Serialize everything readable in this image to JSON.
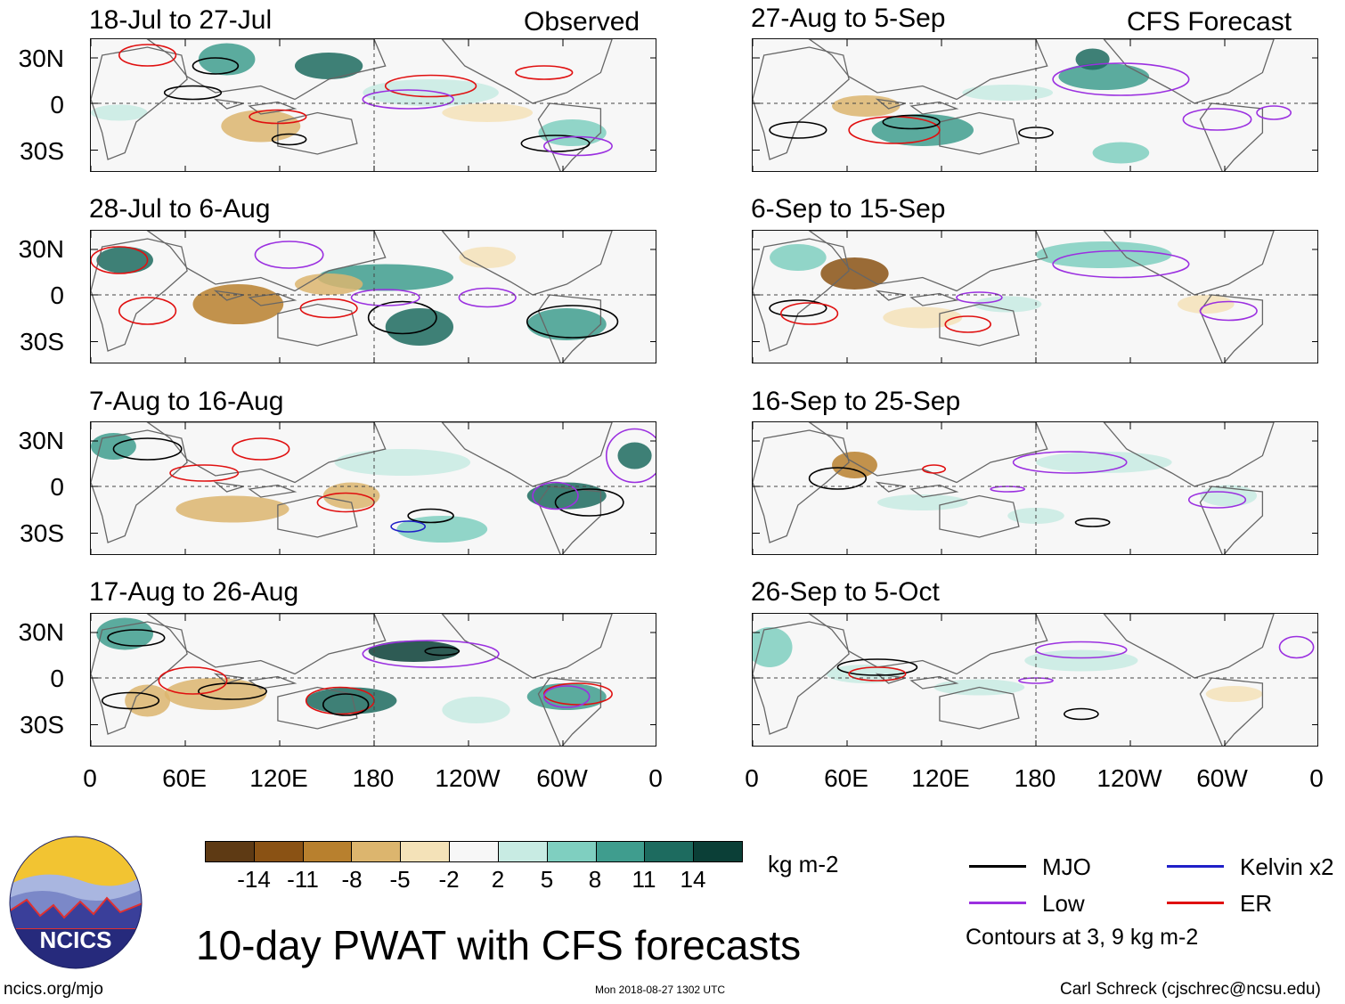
{
  "header": {
    "observed_label": "Observed",
    "forecast_label": "CFS Forecast"
  },
  "panels": [
    {
      "title": "18-Jul to 27-Jul"
    },
    {
      "title": "28-Jul to 6-Aug"
    },
    {
      "title": "7-Aug to 16-Aug"
    },
    {
      "title": "17-Aug to 26-Aug"
    },
    {
      "title": "27-Aug to 5-Sep"
    },
    {
      "title": "6-Sep to 15-Sep"
    },
    {
      "title": "16-Sep to 25-Sep"
    },
    {
      "title": "26-Sep to 5-Oct"
    }
  ],
  "axes": {
    "lat_labels": [
      "30N",
      "0",
      "30S"
    ],
    "lon_labels": [
      "0",
      "60E",
      "120E",
      "180",
      "120W",
      "60W",
      "0"
    ]
  },
  "colorbar": {
    "unit": "kg m-2",
    "ticks": [
      "-14",
      "-11",
      "-8",
      "-5",
      "-2",
      "2",
      "5",
      "8",
      "11",
      "14"
    ],
    "colors": [
      "#5e3a14",
      "#8a5214",
      "#b8802e",
      "#dcb56e",
      "#f4e2b8",
      "#f7f7f7",
      "#c8ebe3",
      "#7fcfc0",
      "#3f9d8e",
      "#1d6b5f",
      "#0b3f37"
    ]
  },
  "legend": {
    "mjo": "MJO",
    "mjo_color": "#000000",
    "kelvin": "Kelvin x2",
    "kelvin_color": "#2020c8",
    "low": "Low",
    "low_color": "#9b30e0",
    "er": "ER",
    "er_color": "#e01010",
    "contours_note": "Contours at 3, 9 kg m-2"
  },
  "footer": {
    "main_title": "10-day PWAT with CFS forecasts",
    "website": "ncics.org/mjo",
    "timestamp": "Mon 2018-08-27 1302 UTC",
    "author": "Carl Schreck (cjschrec@ncsu.edu)",
    "logo_text": "NCICS"
  }
}
